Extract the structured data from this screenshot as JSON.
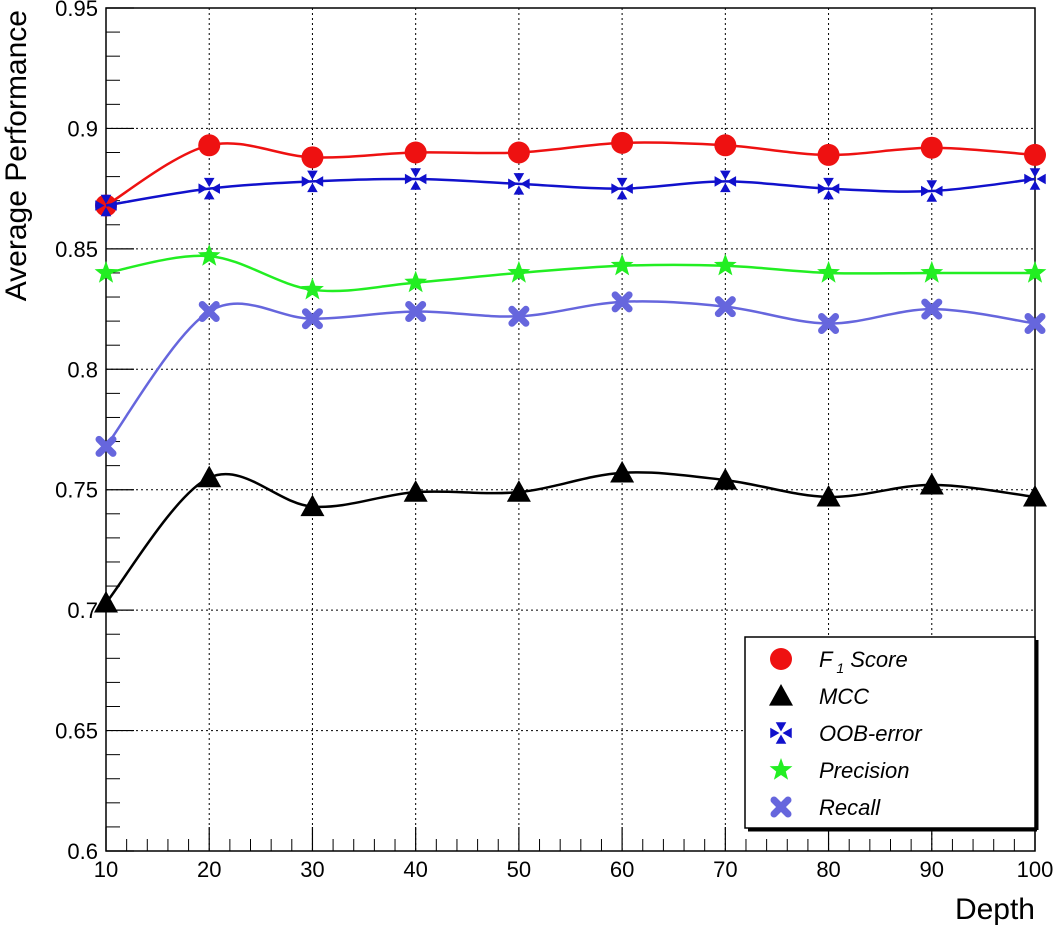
{
  "chart_data": {
    "type": "line",
    "title": "",
    "xlabel": "Depth",
    "ylabel": "Average Performance",
    "xlim": [
      10,
      100
    ],
    "ylim": [
      0.6,
      0.95
    ],
    "x": [
      10,
      20,
      30,
      40,
      50,
      60,
      70,
      80,
      90,
      100
    ],
    "x_ticks": [
      "10",
      "20",
      "30",
      "40",
      "50",
      "60",
      "70",
      "80",
      "90",
      "100"
    ],
    "y_ticks": [
      "0.6",
      "0.65",
      "0.7",
      "0.75",
      "0.8",
      "0.85",
      "0.9",
      "0.95"
    ],
    "grid": true,
    "legend_position": "bottom-right",
    "series": [
      {
        "key": "f1",
        "name": "F",
        "subscript": "1",
        "name_suffix": " Score",
        "color": "#ee1111",
        "marker": "circle",
        "values": [
          0.868,
          0.893,
          0.888,
          0.89,
          0.89,
          0.894,
          0.893,
          0.889,
          0.892,
          0.889
        ]
      },
      {
        "key": "mcc",
        "name": "MCC",
        "color": "#000000",
        "marker": "triangle",
        "values": [
          0.703,
          0.755,
          0.743,
          0.749,
          0.749,
          0.757,
          0.754,
          0.747,
          0.752,
          0.747
        ]
      },
      {
        "key": "oob",
        "name": "OOB-error",
        "color": "#1111cc",
        "marker": "arrows",
        "values": [
          0.868,
          0.875,
          0.878,
          0.879,
          0.877,
          0.875,
          0.878,
          0.875,
          0.874,
          0.879
        ]
      },
      {
        "key": "precision",
        "name": "Precision",
        "color": "#22ee22",
        "marker": "star",
        "values": [
          0.84,
          0.847,
          0.833,
          0.836,
          0.84,
          0.843,
          0.843,
          0.84,
          0.84,
          0.84
        ]
      },
      {
        "key": "recall",
        "name": "Recall",
        "color": "#6666dd",
        "marker": "cross",
        "values": [
          0.768,
          0.824,
          0.821,
          0.824,
          0.822,
          0.828,
          0.826,
          0.819,
          0.825,
          0.819
        ]
      }
    ]
  }
}
